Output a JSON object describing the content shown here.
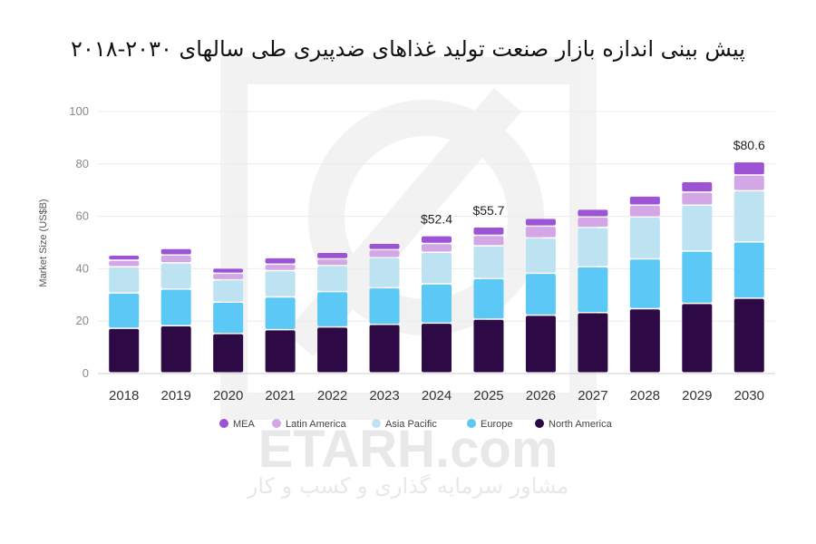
{
  "chart_data": {
    "type": "bar",
    "stacked": true,
    "title": "پیش بینی اندازه بازار صنعت تولید غذاهای ضدپیری طی سالهای ۲۰۳۰-۲۰۱۸",
    "ylabel": "Market Size (US$B)",
    "xlabel": "",
    "ylim": [
      0,
      100
    ],
    "yticks": [
      0,
      20,
      40,
      60,
      80,
      100
    ],
    "grid": true,
    "legend_position": "bottom",
    "categories": [
      "2018",
      "2019",
      "2020",
      "2021",
      "2022",
      "2023",
      "2024",
      "2025",
      "2026",
      "2027",
      "2028",
      "2029",
      "2030"
    ],
    "series": [
      {
        "name": "North America",
        "color": "#2d0a45",
        "values": [
          17,
          18,
          15,
          16.5,
          17.5,
          18.5,
          19,
          20.5,
          22,
          23,
          24.5,
          26.5,
          28.5
        ]
      },
      {
        "name": "Europe",
        "color": "#5bc8f5",
        "values": [
          13.5,
          14,
          12,
          12.5,
          13.5,
          14,
          15,
          15.5,
          16,
          17.5,
          19,
          20,
          21.5
        ]
      },
      {
        "name": "Asia Pacific",
        "color": "#bde3f3",
        "values": [
          10,
          10,
          8.5,
          10,
          10,
          11.5,
          12,
          12.5,
          13.5,
          15,
          16,
          17.5,
          19.5
        ]
      },
      {
        "name": "Latin America",
        "color": "#d3a6e6",
        "values": [
          2.5,
          3,
          2.5,
          2.5,
          2.5,
          3,
          3.4,
          4,
          4.5,
          4,
          4.5,
          5,
          6
        ]
      },
      {
        "name": "MEA",
        "color": "#9c53d6",
        "values": [
          2,
          2.5,
          2,
          2.5,
          2.5,
          2.5,
          3,
          3.2,
          3,
          3,
          3.5,
          4,
          5.1
        ]
      }
    ],
    "annotations": [
      {
        "category": "2024",
        "text": "$52.4",
        "value": 52.4
      },
      {
        "category": "2025",
        "text": "$55.7",
        "value": 55.7
      },
      {
        "category": "2030",
        "text": "$80.6",
        "value": 80.6
      }
    ]
  },
  "watermark": {
    "text": "ETARH.com",
    "subtitle": "مشاور سرمایه گذاری و کسب و کار"
  }
}
